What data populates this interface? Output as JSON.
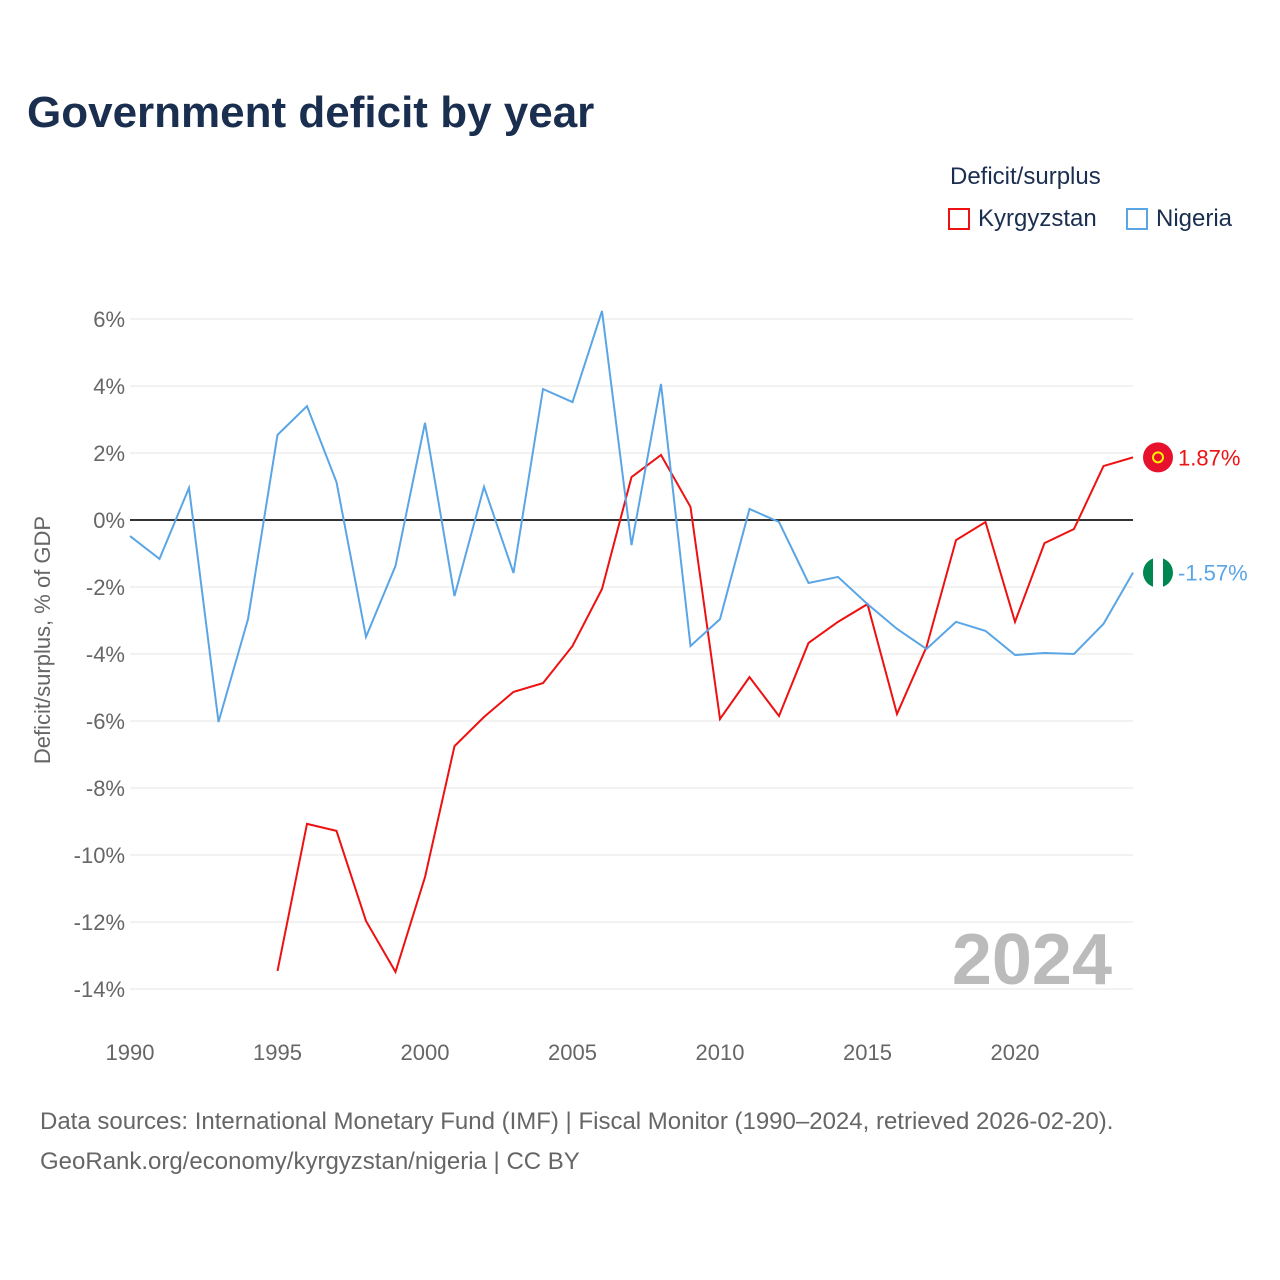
{
  "title": "Government deficit by year",
  "legend": {
    "title": "Deficit/surplus",
    "items": [
      {
        "name": "Kyrgyzstan",
        "color": "#ee1111"
      },
      {
        "name": "Nigeria",
        "color": "#5aa5e6"
      }
    ]
  },
  "footer": {
    "line1": "Data sources: International Monetary Fund (IMF) | Fiscal Monitor (1990–2024, retrieved 2026-02-20).",
    "line2": "GeoRank.org/economy/kyrgyzstan/nigeria | CC BY"
  },
  "chart_data": {
    "type": "line",
    "title": "Government deficit by year",
    "ylabel": "Deficit/surplus, % of GDP",
    "xlabel": "",
    "xlim": [
      1990,
      2024
    ],
    "ylim": [
      -14,
      6
    ],
    "yticks": [
      6,
      4,
      2,
      0,
      -2,
      -4,
      -6,
      -8,
      -10,
      -12,
      -14
    ],
    "ytick_labels": [
      "6%",
      "4%",
      "2%",
      "0%",
      "-2%",
      "-4%",
      "-6%",
      "-8%",
      "-10%",
      "-12%",
      "-14%"
    ],
    "xticks": [
      1990,
      1995,
      2000,
      2005,
      2010,
      2015,
      2020
    ],
    "xtick_labels": [
      "1990",
      "1995",
      "2000",
      "2005",
      "2010",
      "2015",
      "2020"
    ],
    "watermark": "2024",
    "series": [
      {
        "name": "Kyrgyzstan",
        "color": "#ee1111",
        "end_label": "1.87%",
        "x": [
          1995,
          1996,
          1997,
          1998,
          1999,
          2000,
          2001,
          2002,
          2003,
          2004,
          2005,
          2006,
          2007,
          2008,
          2009,
          2010,
          2011,
          2012,
          2013,
          2014,
          2015,
          2016,
          2017,
          2018,
          2019,
          2020,
          2021,
          2022,
          2023,
          2024
        ],
        "values": [
          -13.46,
          -9.07,
          -9.28,
          -11.97,
          -13.49,
          -10.66,
          -6.75,
          -5.88,
          -5.13,
          -4.87,
          -3.76,
          -2.06,
          1.28,
          1.94,
          0.39,
          -5.94,
          -4.69,
          -5.85,
          -3.67,
          -3.04,
          -2.51,
          -5.79,
          -3.79,
          -0.6,
          -0.06,
          -3.04,
          -0.69,
          -0.27,
          1.61,
          1.87
        ]
      },
      {
        "name": "Nigeria",
        "color": "#5aa5e6",
        "end_label": "-1.57%",
        "x": [
          1990,
          1991,
          1992,
          1993,
          1994,
          1995,
          1996,
          1997,
          1998,
          1999,
          2000,
          2001,
          2002,
          2003,
          2004,
          2005,
          2006,
          2007,
          2008,
          2009,
          2010,
          2011,
          2012,
          2013,
          2014,
          2015,
          2016,
          2017,
          2018,
          2019,
          2020,
          2021,
          2022,
          2023,
          2024
        ],
        "values": [
          -0.48,
          -1.16,
          0.96,
          -6.03,
          -2.96,
          2.54,
          3.4,
          1.13,
          -3.49,
          -1.37,
          2.9,
          -2.27,
          0.99,
          -1.58,
          3.91,
          3.52,
          6.24,
          -0.75,
          4.06,
          -3.76,
          -2.96,
          0.33,
          -0.06,
          -1.88,
          -1.7,
          -2.51,
          -3.25,
          -3.85,
          -3.04,
          -3.31,
          -4.03,
          -3.97,
          -4.0,
          -3.1,
          -1.57
        ]
      }
    ]
  }
}
